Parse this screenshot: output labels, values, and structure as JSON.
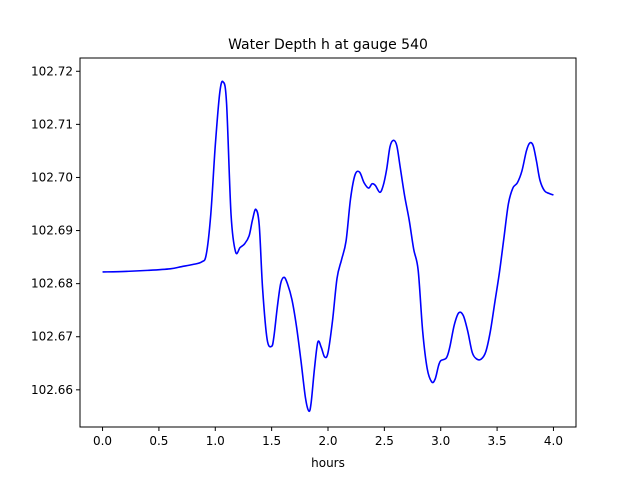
{
  "chart_data": {
    "type": "line",
    "title": "Water Depth h at gauge 540",
    "xlabel": "hours",
    "ylabel": "",
    "xlim": [
      -0.2,
      4.2
    ],
    "ylim": [
      102.653,
      102.7225
    ],
    "xticks": [
      0.0,
      0.5,
      1.0,
      1.5,
      2.0,
      2.5,
      3.0,
      3.5,
      4.0
    ],
    "xtick_labels": [
      "0.0",
      "0.5",
      "1.0",
      "1.5",
      "2.0",
      "2.5",
      "3.0",
      "3.5",
      "4.0"
    ],
    "yticks": [
      102.66,
      102.67,
      102.68,
      102.69,
      102.7,
      102.71,
      102.72
    ],
    "ytick_labels": [
      "102.66",
      "102.67",
      "102.68",
      "102.69",
      "102.70",
      "102.71",
      "102.72"
    ],
    "grid": false,
    "series": [
      {
        "color": "#0000ff",
        "x": [
          0.0,
          0.2,
          0.4,
          0.6,
          0.7,
          0.8,
          0.88,
          0.92,
          0.96,
          1.0,
          1.04,
          1.07,
          1.1,
          1.14,
          1.18,
          1.22,
          1.26,
          1.3,
          1.33,
          1.36,
          1.39,
          1.42,
          1.46,
          1.5,
          1.52,
          1.55,
          1.58,
          1.61,
          1.64,
          1.68,
          1.72,
          1.76,
          1.8,
          1.83,
          1.85,
          1.88,
          1.91,
          1.94,
          1.97,
          2.0,
          2.04,
          2.08,
          2.12,
          2.16,
          2.2,
          2.24,
          2.28,
          2.32,
          2.36,
          2.39,
          2.42,
          2.46,
          2.49,
          2.52,
          2.55,
          2.58,
          2.61,
          2.64,
          2.68,
          2.72,
          2.76,
          2.8,
          2.84,
          2.88,
          2.92,
          2.95,
          2.98,
          3.0,
          3.05,
          3.08,
          3.12,
          3.16,
          3.2,
          3.24,
          3.28,
          3.32,
          3.36,
          3.4,
          3.44,
          3.48,
          3.52,
          3.56,
          3.6,
          3.64,
          3.68,
          3.72,
          3.76,
          3.79,
          3.82,
          3.85,
          3.88,
          3.92,
          3.96,
          4.0
        ],
        "y": [
          102.6822,
          102.6823,
          102.6825,
          102.6828,
          102.6832,
          102.6836,
          102.6841,
          102.6855,
          102.693,
          102.706,
          102.716,
          102.718,
          102.714,
          102.693,
          102.686,
          102.6868,
          102.6875,
          102.689,
          102.692,
          102.694,
          102.691,
          102.679,
          102.6695,
          102.6682,
          102.67,
          102.6755,
          102.68,
          102.6812,
          102.68,
          102.677,
          102.672,
          102.6655,
          102.6585,
          102.656,
          102.6575,
          102.664,
          102.669,
          102.668,
          102.6662,
          102.667,
          102.673,
          102.681,
          102.6845,
          102.688,
          102.696,
          102.7005,
          102.701,
          102.699,
          102.698,
          102.6988,
          102.6985,
          102.6972,
          102.6985,
          102.7015,
          102.7058,
          102.707,
          102.706,
          102.702,
          102.6965,
          102.692,
          102.6865,
          102.6825,
          102.671,
          102.664,
          102.6615,
          102.662,
          102.6645,
          102.6655,
          102.666,
          102.668,
          102.6722,
          102.6745,
          102.674,
          102.671,
          102.667,
          102.6658,
          102.6658,
          102.6672,
          102.671,
          102.6765,
          102.682,
          102.6885,
          102.695,
          102.698,
          102.699,
          102.7012,
          102.705,
          102.7065,
          102.706,
          102.703,
          102.6995,
          102.6975,
          102.697,
          102.6967
        ]
      }
    ]
  }
}
